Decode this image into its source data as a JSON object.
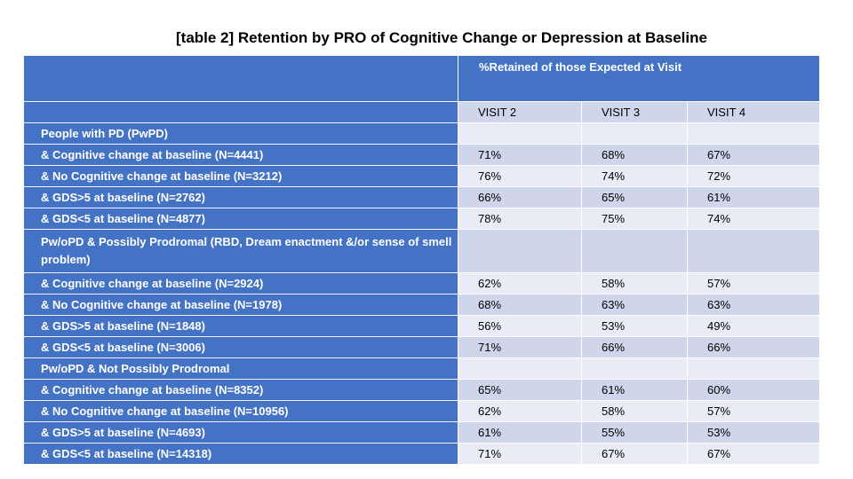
{
  "title": "[table 2] Retention by PRO of Cognitive Change or Depression  at Baseline",
  "table": {
    "group_header": "%Retained of those Expected at Visit",
    "columns": [
      "VISIT 2",
      "VISIT 3",
      "VISIT 4"
    ],
    "rows": [
      {
        "label": "People with PD (PwPD)",
        "values": [
          "",
          "",
          ""
        ]
      },
      {
        "label": " & Cognitive change at baseline  (N=4441)",
        "values": [
          "71%",
          "68%",
          "67%"
        ]
      },
      {
        "label": " & No Cognitive change at baseline (N=3212)",
        "values": [
          "76%",
          "74%",
          "72%"
        ]
      },
      {
        "label": " & GDS>5 at baseline (N=2762)",
        "values": [
          "66%",
          "65%",
          "61%"
        ]
      },
      {
        "label": " & GDS<5 at baseline (N=4877)",
        "values": [
          "78%",
          "75%",
          "74%"
        ]
      },
      {
        "label": "Pw/oPD & Possibly Prodromal (RBD, Dream enactment &/or sense of smell problem)",
        "values": [
          "",
          "",
          ""
        ]
      },
      {
        "label": " & Cognitive change at baseline  (N=2924)",
        "values": [
          "62%",
          "58%",
          "57%"
        ]
      },
      {
        "label": " & No Cognitive change at baseline (N=1978)",
        "values": [
          "68%",
          "63%",
          "63%"
        ]
      },
      {
        "label": " & GDS>5 at baseline (N=1848)",
        "values": [
          "56%",
          "53%",
          "49%"
        ]
      },
      {
        "label": " & GDS<5 at baseline (N=3006)",
        "values": [
          "71%",
          "66%",
          "66%"
        ]
      },
      {
        "label": "Pw/oPD & Not Possibly Prodromal",
        "values": [
          "",
          "",
          ""
        ]
      },
      {
        "label": " & Cognitive change at baseline (N=8352)",
        "values": [
          "65%",
          "61%",
          "60%"
        ]
      },
      {
        "label": "& No Cognitive change at baseline (N=10956)",
        "values": [
          "62%",
          "58%",
          "57%"
        ]
      },
      {
        "label": " & GDS>5 at baseline (N=4693)",
        "values": [
          "61%",
          "55%",
          "53%"
        ]
      },
      {
        "label": "& GDS<5 at baseline (N=14318)",
        "values": [
          "71%",
          "67%",
          "67%"
        ]
      }
    ]
  }
}
